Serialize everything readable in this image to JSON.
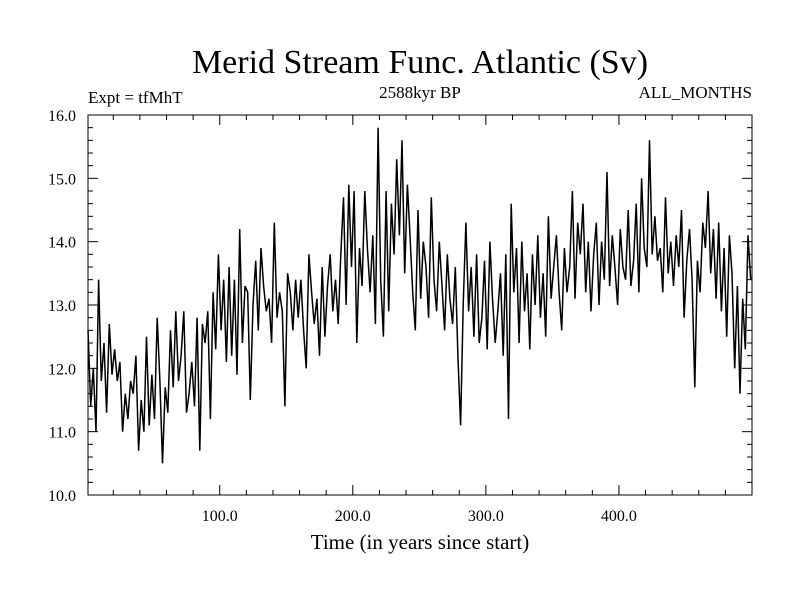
{
  "chart_data": {
    "type": "line",
    "title": "Merid Stream Func. Atlantic (Sv)",
    "subtitle_left": "Expt = tfMhT",
    "subtitle_center": "2588kyr BP",
    "subtitle_right": "ALL_MONTHS",
    "xlabel": "Time (in years since start)",
    "ylabel": "",
    "xlim": [
      1,
      500
    ],
    "ylim": [
      10.0,
      16.0
    ],
    "x_ticks": [
      100,
      200,
      300,
      400
    ],
    "x_tick_labels": [
      "100.0",
      "200.0",
      "300.0",
      "400.0"
    ],
    "y_ticks": [
      10,
      11,
      12,
      13,
      14,
      15,
      16
    ],
    "y_tick_labels": [
      "10.0",
      "11.0",
      "12.0",
      "13.0",
      "14.0",
      "15.0",
      "16.0"
    ],
    "x_minor_step": 20,
    "y_minor_step": 0.2,
    "grid": false,
    "series": [
      {
        "name": "Merid Stream Func. Atlantic",
        "color": "#000000",
        "x_start": 1,
        "x_step": 2,
        "values": [
          12.6,
          11.4,
          12.0,
          11.0,
          13.4,
          11.8,
          12.4,
          11.3,
          12.7,
          11.9,
          12.3,
          11.8,
          12.1,
          11.0,
          11.6,
          11.2,
          11.8,
          11.6,
          12.2,
          10.7,
          11.5,
          11.0,
          12.5,
          11.1,
          11.9,
          11.2,
          12.8,
          11.8,
          10.5,
          11.7,
          11.3,
          12.6,
          11.7,
          12.9,
          11.8,
          12.2,
          12.9,
          11.3,
          11.6,
          12.1,
          11.4,
          12.8,
          10.7,
          12.7,
          12.4,
          12.9,
          11.2,
          13.2,
          12.3,
          13.8,
          12.6,
          13.4,
          12.1,
          13.6,
          12.2,
          13.4,
          11.9,
          14.2,
          12.4,
          13.3,
          13.2,
          11.5,
          13.0,
          13.7,
          12.6,
          13.9,
          13.3,
          12.9,
          13.1,
          12.4,
          14.3,
          12.8,
          13.2,
          12.9,
          11.4,
          13.5,
          13.2,
          12.6,
          13.4,
          12.8,
          13.4,
          12.6,
          12.0,
          13.8,
          13.2,
          12.7,
          13.1,
          12.2,
          13.6,
          12.5,
          13.3,
          13.8,
          12.9,
          13.4,
          12.7,
          13.8,
          14.7,
          13.0,
          14.9,
          13.6,
          14.8,
          12.4,
          13.9,
          13.3,
          14.8,
          13.9,
          13.2,
          14.1,
          12.7,
          15.8,
          13.4,
          12.5,
          14.8,
          12.9,
          14.6,
          13.8,
          15.3,
          14.1,
          15.6,
          13.5,
          14.9,
          14.1,
          13.2,
          12.6,
          14.5,
          13.1,
          14.0,
          13.6,
          12.8,
          14.7,
          13.4,
          12.9,
          14.0,
          13.3,
          12.6,
          13.8,
          13.1,
          12.7,
          13.6,
          12.2,
          11.1,
          13.0,
          14.3,
          12.9,
          13.6,
          12.5,
          13.8,
          12.4,
          12.8,
          13.7,
          12.3,
          14.0,
          13.1,
          12.4,
          12.9,
          13.5,
          12.2,
          13.8,
          11.2,
          14.6,
          13.2,
          13.9,
          12.4,
          14.0,
          12.9,
          13.5,
          12.3,
          13.8,
          13.0,
          14.1,
          12.8,
          13.5,
          12.5,
          14.4,
          13.1,
          13.6,
          14.1,
          13.2,
          12.6,
          13.9,
          13.2,
          13.6,
          14.8,
          13.1,
          14.3,
          13.8,
          14.6,
          13.2,
          14.0,
          12.9,
          13.8,
          14.3,
          13.0,
          14.0,
          13.4,
          15.1,
          13.3,
          14.1,
          13.6,
          13.0,
          14.2,
          13.6,
          13.4,
          14.5,
          13.3,
          13.7,
          14.6,
          13.2,
          15.0,
          13.9,
          13.6,
          15.6,
          13.8,
          14.4,
          13.7,
          13.9,
          13.2,
          14.7,
          13.5,
          14.0,
          13.3,
          14.1,
          13.6,
          14.5,
          12.8,
          13.7,
          14.2,
          13.4,
          11.7,
          13.7,
          13.2,
          14.3,
          13.9,
          14.8,
          13.5,
          14.2,
          13.1,
          14.3,
          12.9,
          13.9,
          12.5,
          14.1,
          13.5,
          12.0,
          13.3,
          11.6,
          13.1,
          12.3,
          14.1,
          13.4
        ]
      }
    ]
  }
}
